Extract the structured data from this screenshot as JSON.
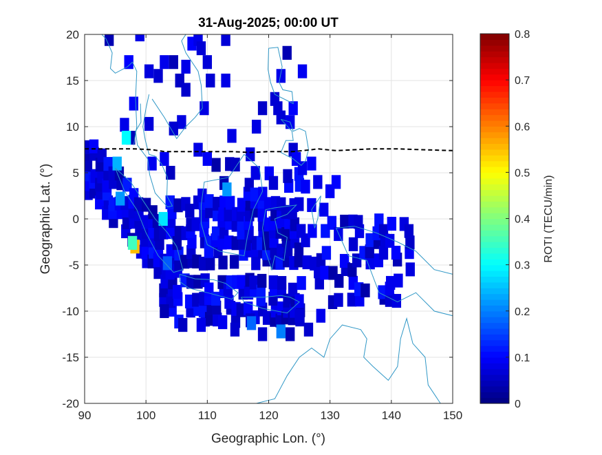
{
  "chart_data": {
    "type": "heatmap",
    "title": "31-Aug-2025; 00:00 UT",
    "xlabel": "Geographic Lon. (°)",
    "ylabel": "Geographic Lat. (°)",
    "xlim": [
      90,
      150
    ],
    "ylim": [
      -20,
      20
    ],
    "xticks": [
      90,
      100,
      110,
      120,
      130,
      140,
      150
    ],
    "yticks": [
      -20,
      -15,
      -10,
      -5,
      0,
      5,
      10,
      15,
      20
    ],
    "grid": true,
    "colorbar": {
      "label": "ROTI (TECU/min)",
      "colormap": "jet",
      "clim": [
        0,
        0.8
      ],
      "ticks": [
        0,
        0.1,
        0.2,
        0.3,
        0.4,
        0.5,
        0.6,
        0.7,
        0.8
      ]
    },
    "cell_size_deg": [
      1.5,
      1.5
    ],
    "dip_equator": [
      [
        90,
        7.6
      ],
      [
        94,
        7.6
      ],
      [
        98,
        7.6
      ],
      [
        101,
        7.5
      ],
      [
        103,
        7.3
      ],
      [
        106,
        7.3
      ],
      [
        110,
        7.3
      ],
      [
        114,
        7.3
      ],
      [
        117,
        7.2
      ],
      [
        120,
        7.3
      ],
      [
        124,
        7.3
      ],
      [
        127,
        7.5
      ],
      [
        128,
        7.6
      ],
      [
        131,
        7.4
      ],
      [
        134,
        7.5
      ],
      [
        137,
        7.6
      ],
      [
        141,
        7.6
      ],
      [
        145,
        7.5
      ],
      [
        150,
        7.4
      ]
    ],
    "high_cells": [
      {
        "lon": 98.2,
        "lat": -3.0,
        "roti": 0.55
      },
      {
        "lon": 97.8,
        "lat": -2.6,
        "roti": 0.35
      },
      {
        "lon": 102.8,
        "lat": 0.0,
        "roti": 0.28
      },
      {
        "lon": 96.8,
        "lat": 8.8,
        "roti": 0.3
      },
      {
        "lon": 95.3,
        "lat": 6.0,
        "roti": 0.24
      },
      {
        "lon": 95.8,
        "lat": 2.2,
        "roti": 0.22
      },
      {
        "lon": 113.2,
        "lat": 3.2,
        "roti": 0.22
      },
      {
        "lon": 122.0,
        "lat": -12.2,
        "roti": 0.2
      },
      {
        "lon": 117.2,
        "lat": -11.3,
        "roti": 0.18
      },
      {
        "lon": 103.5,
        "lat": -4.8,
        "roti": 0.17
      }
    ],
    "background_roti_range": [
      0.03,
      0.12
    ]
  }
}
